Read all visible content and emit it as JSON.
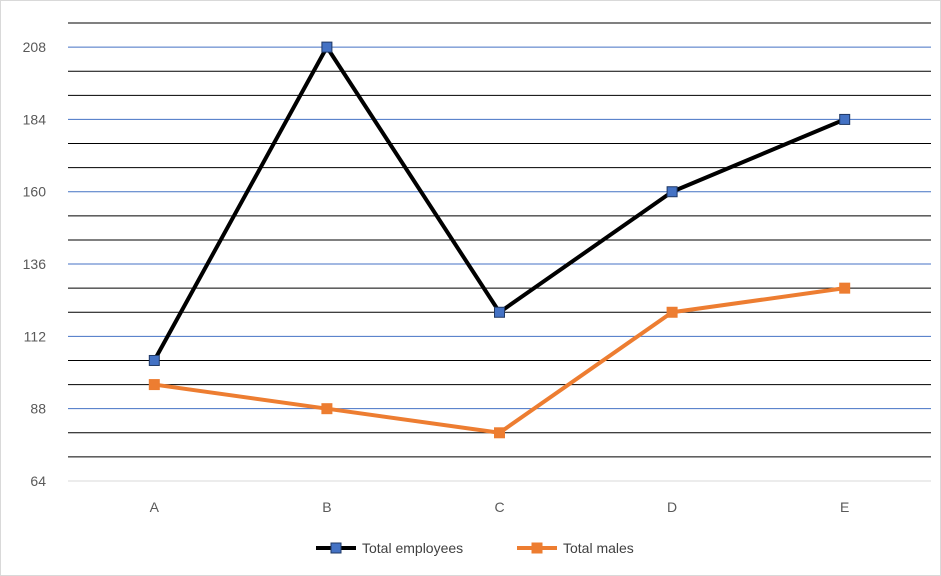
{
  "chart_data": {
    "type": "line",
    "categories": [
      "A",
      "B",
      "C",
      "D",
      "E"
    ],
    "series": [
      {
        "name": "Total employees",
        "values": [
          104,
          208,
          120,
          160,
          184
        ],
        "color": "#000000",
        "marker_color": "#4472c4",
        "marker": "square"
      },
      {
        "name": "Total males",
        "values": [
          96,
          88,
          80,
          120,
          128
        ],
        "color": "#ed7d31",
        "marker_color": "#ed7d31",
        "marker": "square"
      }
    ],
    "y_ticks": [
      64,
      88,
      112,
      136,
      160,
      184,
      208
    ],
    "ylim": [
      64,
      216
    ],
    "major_gridline_color": "#4472c4",
    "minor_gridline_color": "#000000",
    "legend_position": "bottom"
  }
}
